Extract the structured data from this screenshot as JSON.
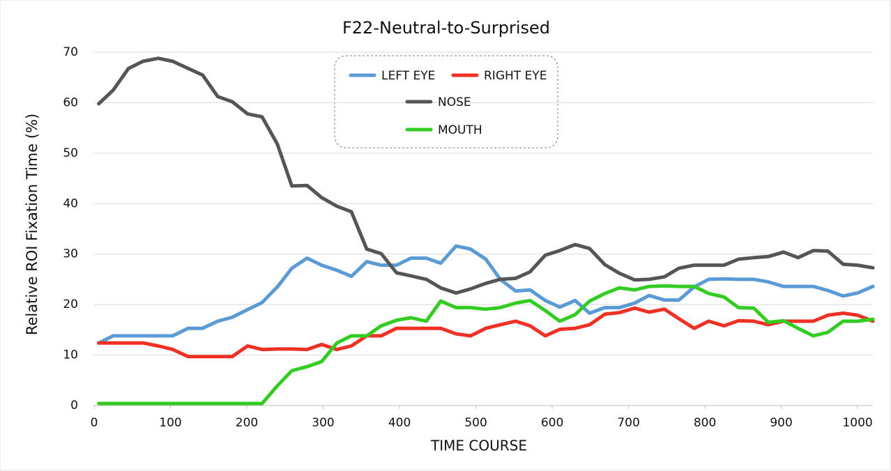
{
  "chart_data": {
    "type": "line",
    "title": "F22-Neutral-to-Surprised",
    "x_label": "TIME  COURSE",
    "y_label": "Relative  ROI  Fixation  Time  (%)",
    "x": [
      6,
      25,
      45,
      64,
      84,
      103,
      123,
      142,
      162,
      181,
      201,
      220,
      240,
      259,
      279,
      298,
      318,
      337,
      357,
      376,
      396,
      415,
      435,
      454,
      474,
      493,
      513,
      532,
      552,
      571,
      591,
      610,
      630,
      649,
      669,
      688,
      708,
      727,
      747,
      766,
      786,
      805,
      825,
      844,
      864,
      883,
      903,
      922,
      942,
      961,
      981,
      1000,
      1020
    ],
    "series": [
      {
        "name": "LEFT EYE",
        "color": "#5b9bd5",
        "values": [
          12.4,
          13.8,
          13.8,
          13.8,
          13.8,
          13.8,
          15.3,
          15.3,
          16.7,
          17.5,
          19.0,
          20.4,
          23.5,
          27.2,
          29.2,
          27.8,
          26.8,
          25.6,
          28.5,
          27.8,
          27.8,
          29.2,
          29.2,
          28.2,
          31.6,
          31.0,
          29.0,
          25.0,
          22.7,
          22.9,
          20.8,
          19.5,
          20.8,
          18.3,
          19.4,
          19.4,
          20.3,
          21.8,
          20.9,
          20.9,
          23.5,
          25.0,
          25.1,
          25.0,
          25.0,
          24.5,
          23.6,
          23.6,
          23.6,
          22.8,
          21.7,
          22.3,
          23.6
        ]
      },
      {
        "name": "RIGHT EYE",
        "color": "#ee3124",
        "values": [
          12.4,
          12.4,
          12.4,
          12.4,
          11.8,
          11.1,
          9.7,
          9.7,
          9.7,
          9.7,
          11.8,
          11.1,
          11.2,
          11.2,
          11.1,
          12.1,
          11.1,
          11.8,
          13.8,
          13.8,
          15.3,
          15.3,
          15.3,
          15.3,
          14.2,
          13.8,
          15.3,
          16.0,
          16.7,
          15.8,
          13.8,
          15.1,
          15.3,
          16.0,
          18.1,
          18.4,
          19.3,
          18.5,
          19.1,
          17.2,
          15.3,
          16.7,
          15.8,
          16.8,
          16.7,
          16.0,
          16.7,
          16.7,
          16.7,
          17.9,
          18.3,
          17.9,
          16.7
        ]
      },
      {
        "name": "NOSE",
        "color": "#555555",
        "values": [
          59.8,
          62.5,
          66.8,
          68.2,
          68.8,
          68.2,
          66.8,
          65.5,
          61.2,
          60.2,
          57.8,
          57.2,
          51.8,
          43.5,
          43.6,
          41.2,
          39.5,
          38.4,
          31.0,
          30.1,
          26.3,
          25.7,
          25.0,
          23.3,
          22.3,
          23.1,
          24.2,
          25.0,
          25.2,
          26.5,
          29.8,
          30.7,
          31.9,
          31.1,
          27.9,
          26.2,
          24.9,
          25.0,
          25.5,
          27.2,
          27.8,
          27.8,
          27.8,
          29.0,
          29.3,
          29.5,
          30.4,
          29.3,
          30.7,
          30.6,
          28.0,
          27.8,
          27.3
        ]
      },
      {
        "name": "MOUTH",
        "color": "#33cc22",
        "values": [
          0.4,
          0.4,
          0.4,
          0.4,
          0.4,
          0.4,
          0.4,
          0.4,
          0.4,
          0.4,
          0.4,
          0.4,
          3.9,
          6.9,
          7.7,
          8.7,
          12.4,
          13.8,
          13.8,
          15.8,
          16.9,
          17.4,
          16.7,
          20.7,
          19.4,
          19.4,
          19.1,
          19.4,
          20.3,
          20.8,
          18.8,
          16.7,
          18.0,
          20.7,
          22.2,
          23.3,
          22.9,
          23.6,
          23.7,
          23.6,
          23.6,
          22.2,
          21.5,
          19.4,
          19.3,
          16.5,
          16.8,
          15.3,
          13.8,
          14.5,
          16.7,
          16.7,
          17.1
        ]
      }
    ],
    "xlim": [
      0,
      1020
    ],
    "xticks": [
      0,
      100,
      200,
      300,
      400,
      500,
      600,
      700,
      800,
      900,
      1000
    ],
    "ylim": [
      0,
      70
    ],
    "yticks": [
      0,
      10,
      20,
      30,
      40,
      50,
      60,
      70
    ],
    "grid": true,
    "legend": "top-center"
  }
}
